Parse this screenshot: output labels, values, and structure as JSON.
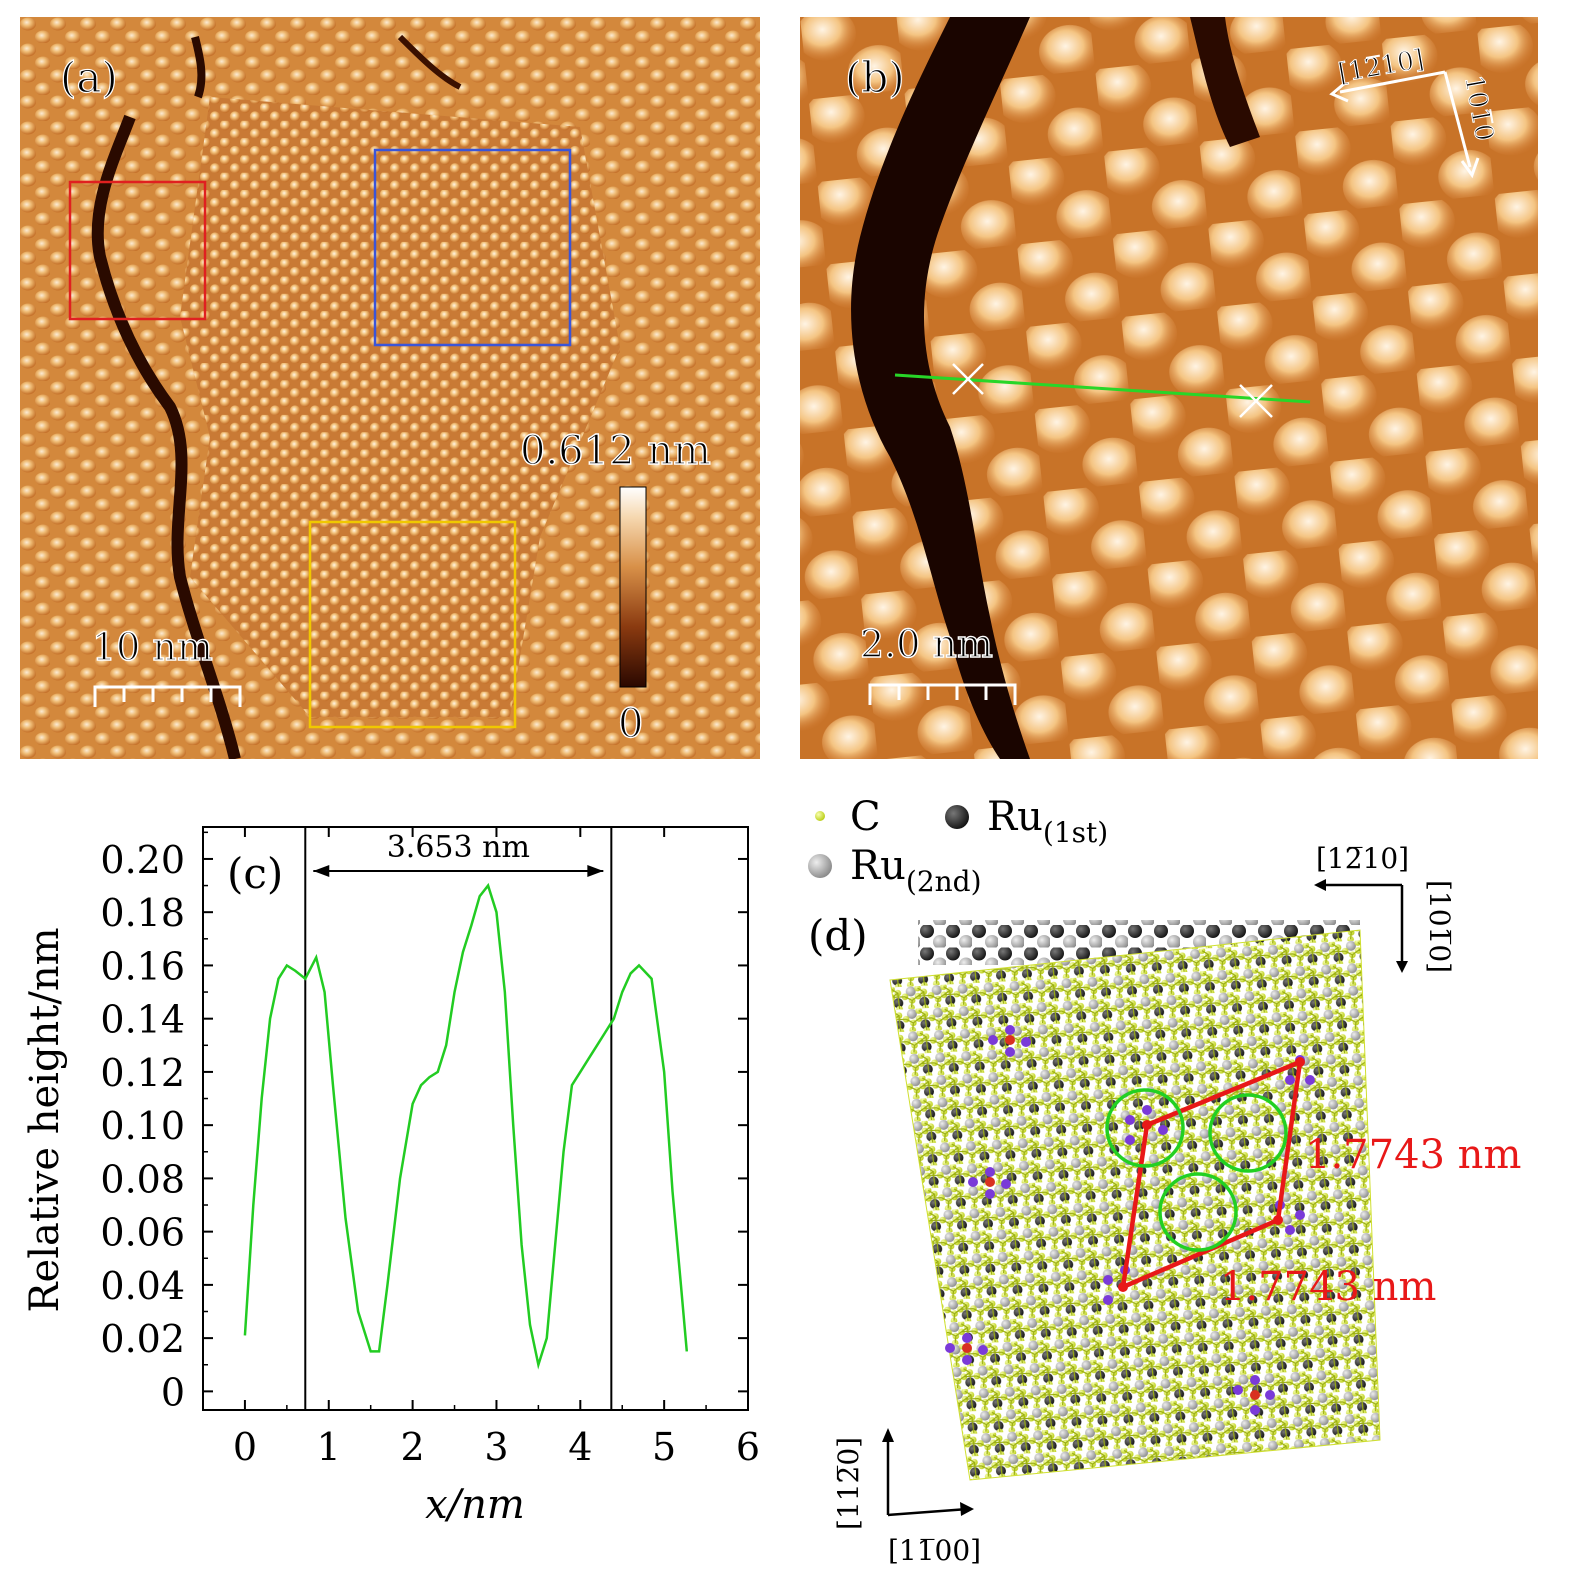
{
  "panel_a": {
    "label": "(a)",
    "scale_bar": "10 nm",
    "colorbar_max": "0.612 nm",
    "colorbar_min": "0",
    "box_colors": {
      "red": "#e02020",
      "blue": "#3a55d8",
      "yellow": "#f0c800"
    }
  },
  "panel_b": {
    "label": "(b)",
    "scale_bar": "2.0 nm",
    "direction_1": "[1̅2̅ 10]",
    "direction_1_text": "[12̅10]",
    "direction_2_text": "101̅0",
    "line_color": "#28d628"
  },
  "panel_c": {
    "label": "(c)",
    "annotation": "3.653 nm",
    "chart_data": {
      "type": "line",
      "title": "",
      "xlabel": "x/nm",
      "ylabel": "Relative height/nm",
      "xlim": [
        -0.5,
        6
      ],
      "ylim": [
        -0.007,
        0.212
      ],
      "xticks": [
        "0",
        "1",
        "2",
        "3",
        "4",
        "5",
        "6"
      ],
      "yticks": [
        "0",
        "0.02",
        "0.04",
        "0.06",
        "0.08",
        "0.10",
        "0.12",
        "0.14",
        "0.16",
        "0.18",
        "0.20"
      ],
      "vlines": [
        0.72,
        4.37
      ],
      "series": [
        {
          "color": "#22cc22",
          "x": [
            0.0,
            0.1,
            0.2,
            0.3,
            0.4,
            0.5,
            0.6,
            0.72,
            0.85,
            0.95,
            1.05,
            1.2,
            1.35,
            1.5,
            1.6,
            1.7,
            1.85,
            2.0,
            2.1,
            2.2,
            2.3,
            2.4,
            2.5,
            2.6,
            2.7,
            2.8,
            2.9,
            3.0,
            3.1,
            3.2,
            3.3,
            3.4,
            3.5,
            3.6,
            3.7,
            3.8,
            3.9,
            4.0,
            4.1,
            4.2,
            4.3,
            4.4,
            4.5,
            4.6,
            4.7,
            4.85,
            5.0,
            5.1,
            5.2,
            5.27
          ],
          "y": [
            0.021,
            0.07,
            0.11,
            0.14,
            0.155,
            0.16,
            0.158,
            0.155,
            0.163,
            0.15,
            0.115,
            0.065,
            0.03,
            0.015,
            0.015,
            0.04,
            0.08,
            0.108,
            0.115,
            0.118,
            0.12,
            0.13,
            0.15,
            0.165,
            0.175,
            0.186,
            0.19,
            0.18,
            0.15,
            0.1,
            0.055,
            0.025,
            0.01,
            0.02,
            0.055,
            0.09,
            0.115,
            0.12,
            0.125,
            0.13,
            0.135,
            0.14,
            0.15,
            0.157,
            0.16,
            0.155,
            0.12,
            0.075,
            0.04,
            0.015
          ]
        }
      ]
    }
  },
  "panel_d": {
    "label": "(d)",
    "legend_c": "C",
    "legend_ru1": "Ru",
    "legend_ru1_sub": "(1st)",
    "legend_ru2": "Ru",
    "legend_ru2_sub": "(2nd)",
    "dir_top_h": "[12̅10]",
    "dir_top_v": "[101̅0]",
    "dir_bottom_v": "[112̅0]",
    "dir_bottom_h": "[11̅00]",
    "dim_1": "1.7743 nm",
    "dim_2": "1.7743 nm",
    "colors": {
      "carbon": "#d6e83a",
      "ru_first": "#2a2a2a",
      "ru_second": "#b0b0b0",
      "highlight": "#7a3ad8",
      "center": "#d83020",
      "cell": "#e81818",
      "circle": "#22d022"
    }
  }
}
